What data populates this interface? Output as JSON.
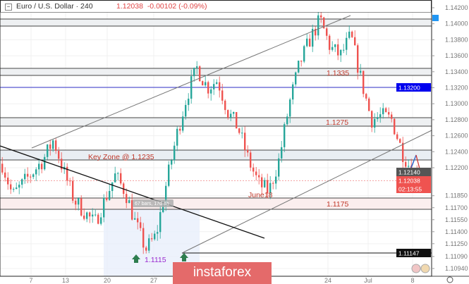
{
  "header": {
    "symbol": "Euro / U.S. Dollar",
    "interval": "240",
    "last": "1.12038",
    "change": "-0.00102 (-0.09%)"
  },
  "chart_data": {
    "type": "candlestick",
    "title": "Euro / U.S. Dollar 240",
    "y_ticks": [
      "1.14200",
      "1.14000",
      "1.13800",
      "1.13600",
      "1.13400",
      "1.13200",
      "1.13000",
      "1.12800",
      "1.12600",
      "1.12400",
      "1.12200",
      "1.11850",
      "1.11700",
      "1.11550",
      "1.11400",
      "1.11250",
      "1.11090",
      "1.10940"
    ],
    "y_tick_values": [
      1.142,
      1.14,
      1.138,
      1.136,
      1.134,
      1.132,
      1.13,
      1.128,
      1.126,
      1.124,
      1.122,
      1.1185,
      1.117,
      1.1155,
      1.114,
      1.1125,
      1.1109,
      1.1094
    ],
    "ylim": [
      1.1088,
      1.143
    ],
    "x_ticks": [
      "7",
      "13",
      "20",
      "27",
      "24",
      "Jul",
      "8"
    ],
    "approx_price_path": [
      1.1225,
      1.1185,
      1.12,
      1.1215,
      1.123,
      1.1255,
      1.1215,
      1.118,
      1.1165,
      1.115,
      1.118,
      1.121,
      1.119,
      1.115,
      1.1118,
      1.1135,
      1.12,
      1.126,
      1.131,
      1.1345,
      1.132,
      1.133,
      1.129,
      1.127,
      1.123,
      1.12,
      1.119,
      1.123,
      1.13,
      1.135,
      1.138,
      1.1405,
      1.137,
      1.136,
      1.1385,
      1.133,
      1.128,
      1.1285,
      1.128,
      1.124,
      1.1215,
      1.1204
    ],
    "price_labels": {
      "level_blue": "1.13200",
      "prev": "1.12140",
      "current": "1.12038",
      "countdown": "02:13:55",
      "low_line": "1.11147"
    },
    "annotations": {
      "zone_top": "",
      "z1335": "1.1335",
      "z1275": "1.1275",
      "key_zone": "Key Zone @ 1.1235",
      "z1175": "1.1175",
      "june18": "June18",
      "low": "1.1115",
      "measure": "67 bars, 17d 4h"
    },
    "colors": {
      "up": "#26a69a",
      "down": "#ef5350",
      "blue_line": "#3333cc",
      "label": "#c0392b",
      "low_label": "#9b2bd0"
    }
  },
  "brand": "instaforex"
}
